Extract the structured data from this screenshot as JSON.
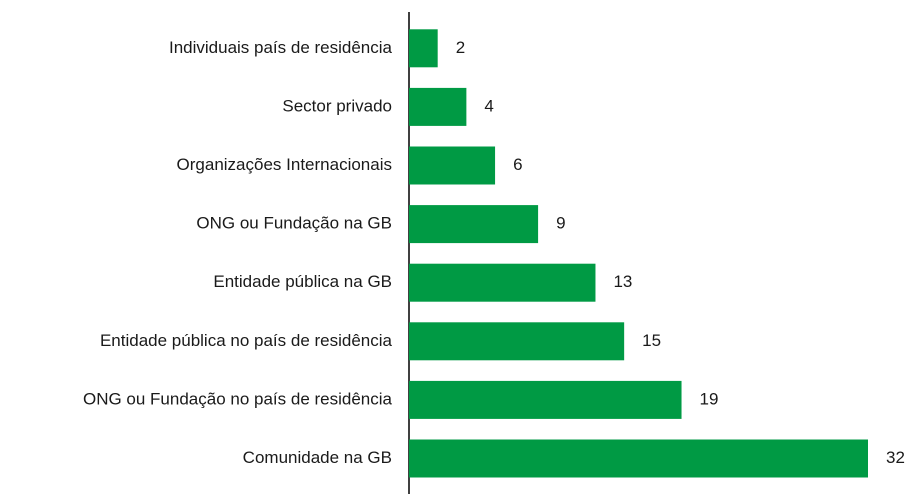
{
  "chart_data": {
    "type": "bar",
    "orientation": "horizontal",
    "categories": [
      "Individuais país de residência",
      "Sector privado",
      "Organizações Internacionais",
      "ONG ou Fundação na GB",
      "Entidade pública na GB",
      "Entidade pública no país de residência",
      "ONG ou Fundação no país de residência",
      "Comunidade na GB"
    ],
    "values": [
      2,
      4,
      6,
      9,
      13,
      15,
      19,
      32
    ],
    "color": "#009a44"
  }
}
